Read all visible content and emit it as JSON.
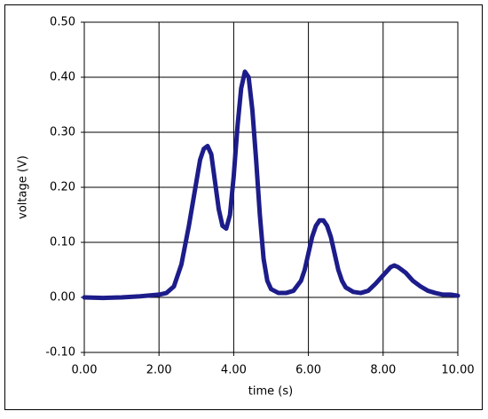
{
  "chart_data": {
    "type": "line",
    "x_label": "time (s)",
    "y_label": "voltage (V)",
    "x": [
      0,
      0.5,
      1.0,
      1.5,
      2.0,
      2.2,
      2.4,
      2.6,
      2.8,
      3.0,
      3.1,
      3.2,
      3.3,
      3.4,
      3.5,
      3.6,
      3.7,
      3.8,
      3.9,
      4.0,
      4.1,
      4.2,
      4.3,
      4.4,
      4.5,
      4.6,
      4.7,
      4.8,
      4.9,
      5.0,
      5.2,
      5.4,
      5.6,
      5.8,
      5.9,
      6.0,
      6.1,
      6.2,
      6.3,
      6.4,
      6.5,
      6.6,
      6.7,
      6.8,
      6.9,
      7.0,
      7.2,
      7.4,
      7.6,
      7.8,
      8.0,
      8.2,
      8.3,
      8.4,
      8.6,
      8.8,
      9.0,
      9.2,
      9.4,
      9.6,
      9.8,
      10.0
    ],
    "series": [
      {
        "name": "voltage",
        "color": "#1c1c8a",
        "values": [
          0.0,
          -0.001,
          0.0,
          0.002,
          0.005,
          0.008,
          0.02,
          0.06,
          0.13,
          0.21,
          0.25,
          0.27,
          0.275,
          0.26,
          0.21,
          0.16,
          0.13,
          0.125,
          0.15,
          0.22,
          0.31,
          0.38,
          0.41,
          0.4,
          0.34,
          0.25,
          0.15,
          0.07,
          0.03,
          0.015,
          0.008,
          0.008,
          0.012,
          0.03,
          0.05,
          0.08,
          0.11,
          0.13,
          0.14,
          0.14,
          0.13,
          0.11,
          0.08,
          0.05,
          0.03,
          0.018,
          0.01,
          0.008,
          0.012,
          0.025,
          0.04,
          0.055,
          0.058,
          0.055,
          0.045,
          0.03,
          0.02,
          0.012,
          0.008,
          0.005,
          0.005,
          0.003
        ]
      }
    ],
    "xlim": [
      0,
      10
    ],
    "xticks": [
      {
        "value": 0,
        "label": "0.00"
      },
      {
        "value": 2,
        "label": "2.00"
      },
      {
        "value": 4,
        "label": "4.00"
      },
      {
        "value": 6,
        "label": "6.00"
      },
      {
        "value": 8,
        "label": "8.00"
      },
      {
        "value": 10,
        "label": "10.00"
      }
    ],
    "ylim": [
      -0.1,
      0.5
    ],
    "yticks": [
      {
        "value": -0.1,
        "label": "-0.10"
      },
      {
        "value": 0,
        "label": "0.00"
      },
      {
        "value": 0.1,
        "label": "0.10"
      },
      {
        "value": 0.2,
        "label": "0.20"
      },
      {
        "value": 0.3,
        "label": "0.30"
      },
      {
        "value": 0.4,
        "label": "0.40"
      },
      {
        "value": 0.5,
        "label": "0.50"
      }
    ],
    "grid": true
  }
}
